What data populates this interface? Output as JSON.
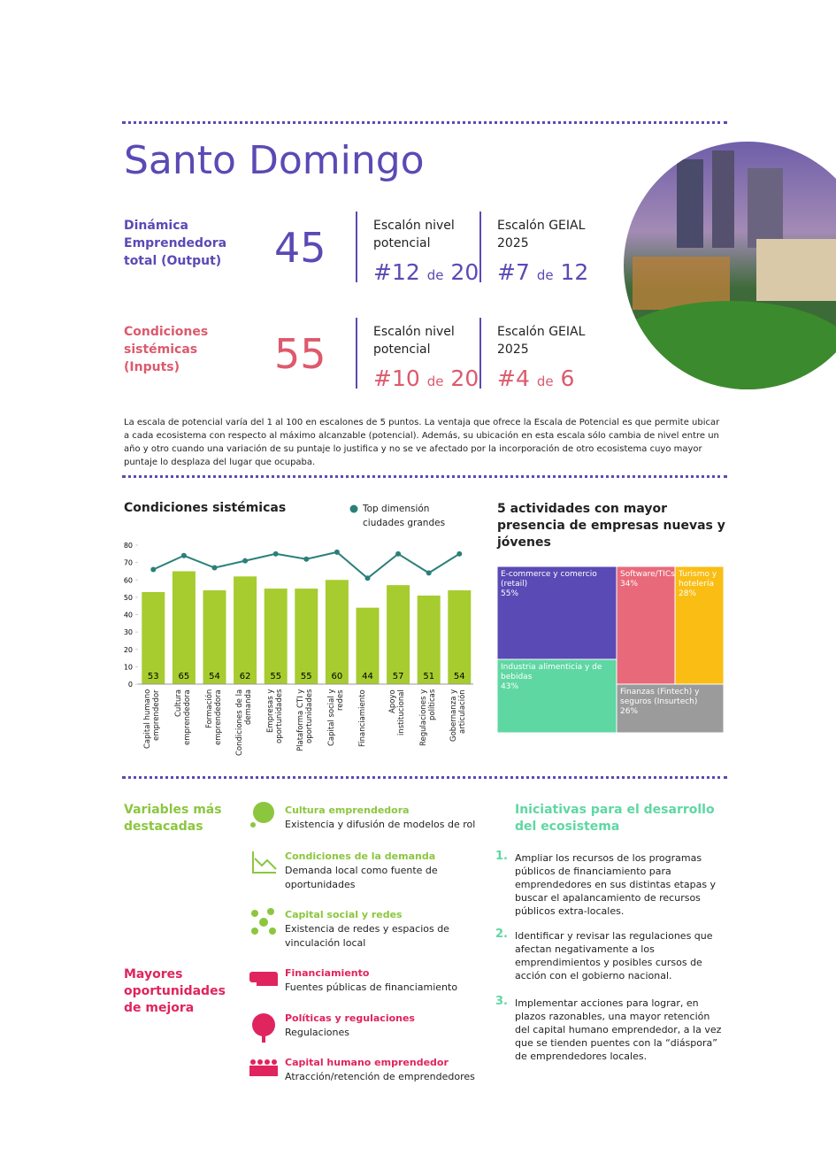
{
  "header": {
    "title": "Santo Domingo"
  },
  "scores": [
    {
      "label": "Dinámica Emprendedora total (Output)",
      "score": 45,
      "level_label": "Escalón nivel potencial",
      "level": {
        "rank": "#12",
        "of": "de",
        "total": 20
      },
      "geial_label": "Escalón GEIAL 2025",
      "geial": {
        "rank": "#7",
        "of": "de",
        "total": 12
      }
    },
    {
      "label": "Condiciones sistémicas (Inputs)",
      "score": 55,
      "level_label": "Escalón nivel potencial",
      "level": {
        "rank": "#10",
        "of": "de",
        "total": 20
      },
      "geial_label": "Escalón GEIAL 2025",
      "geial": {
        "rank": "#4",
        "of": "de",
        "total": 6
      }
    }
  ],
  "note": "La escala de potencial varía del 1 al 100 en escalones de 5 puntos. La ventaja que ofrece la Escala de Potencial es que permite ubicar a cada ecosistema con respecto al máximo alcanzable (potencial). Además, su ubicación en esta escala sólo cambia de nivel entre un año y otro cuando una variación de su puntaje lo justifica y no se ve afectado por la incorporación de otro ecosistema cuyo mayor puntaje lo desplaza del lugar que ocupaba.",
  "chart_data": [
    {
      "type": "combo",
      "title": "Condiciones sistémicas",
      "categories": [
        "Capital humano emprendedor",
        "Cultura emprendedora",
        "Formación emprendedora",
        "Condiciones de la demanda",
        "Empresas y oportunidades",
        "Plataforma CTI y oportunidades",
        "Capital social y redes",
        "Financiamiento",
        "Apoyo institucional",
        "Regulaciones y políticas",
        "Gobernanza y articulación"
      ],
      "series": [
        {
          "kind": "bar",
          "color": "#a6cc2f",
          "values": [
            53,
            65,
            54,
            62,
            55,
            55,
            60,
            44,
            57,
            51,
            54
          ]
        },
        {
          "kind": "line",
          "name": "Top dimensión ciudades grandes",
          "color": "#2a8079",
          "values": [
            66,
            74,
            67,
            71,
            75,
            72,
            76,
            61,
            75,
            64,
            75
          ]
        }
      ],
      "ylim": [
        0,
        80
      ],
      "yticks": [
        0,
        10,
        20,
        30,
        40,
        50,
        60,
        70,
        80
      ]
    },
    {
      "type": "treemap",
      "title": "5 actividades con mayor presencia de empresas nuevas y jóvenes",
      "categories": [
        "E-commerce y comercio (retail)",
        "Software/TICs",
        "Turismo y hotelería",
        "Industria alimenticia y de bebidas",
        "Finanzas (Fintech) y seguros (Insurtech)"
      ],
      "values": [
        55,
        34,
        28,
        43,
        26
      ],
      "value_labels": [
        "55%",
        "34%",
        "28%",
        "43%",
        "26%"
      ],
      "colors": [
        "#5a4ab5",
        "#e86a7a",
        "#f9bd14",
        "#5fd7a3",
        "#9b9b9b"
      ]
    }
  ],
  "highlights": {
    "title": "Variables más destacadas",
    "items": [
      {
        "title": "Cultura emprendedora",
        "text": "Existencia y difusión de modelos de rol"
      },
      {
        "title": "Condiciones de la demanda",
        "text": "Demanda local como fuente de oportunidades"
      },
      {
        "title": "Capital social y redes",
        "text": "Existencia de redes y espacios de vinculación local"
      }
    ]
  },
  "opportunities": {
    "title": "Mayores oportunidades de mejora",
    "items": [
      {
        "title": "Financiamiento",
        "text": "Fuentes públicas de financiamiento"
      },
      {
        "title": "Políticas y regulaciones",
        "text": "Regulaciones"
      },
      {
        "title": "Capital humano emprendedor",
        "text": "Atracción/retención de emprendedores"
      }
    ]
  },
  "initiatives": {
    "title": "Iniciativas para el desarrollo del ecosistema",
    "items": [
      {
        "number": "1.",
        "text": "Ampliar los recursos de los programas públicos de financiamiento para emprendedores en sus distintas etapas y buscar el apalancamiento de recursos públicos extra-locales."
      },
      {
        "number": "2.",
        "text": "Identificar y revisar las regulaciones que afectan negativamente a los emprendimientos y posibles cursos de acción con el gobierno nacional."
      },
      {
        "number": "3.",
        "text": "Implementar acciones para lograr, en plazos razonables, una mayor retención del capital humano emprendedor, a la vez que se tienden puentes con la “diáspora” de emprendedores locales."
      }
    ]
  }
}
